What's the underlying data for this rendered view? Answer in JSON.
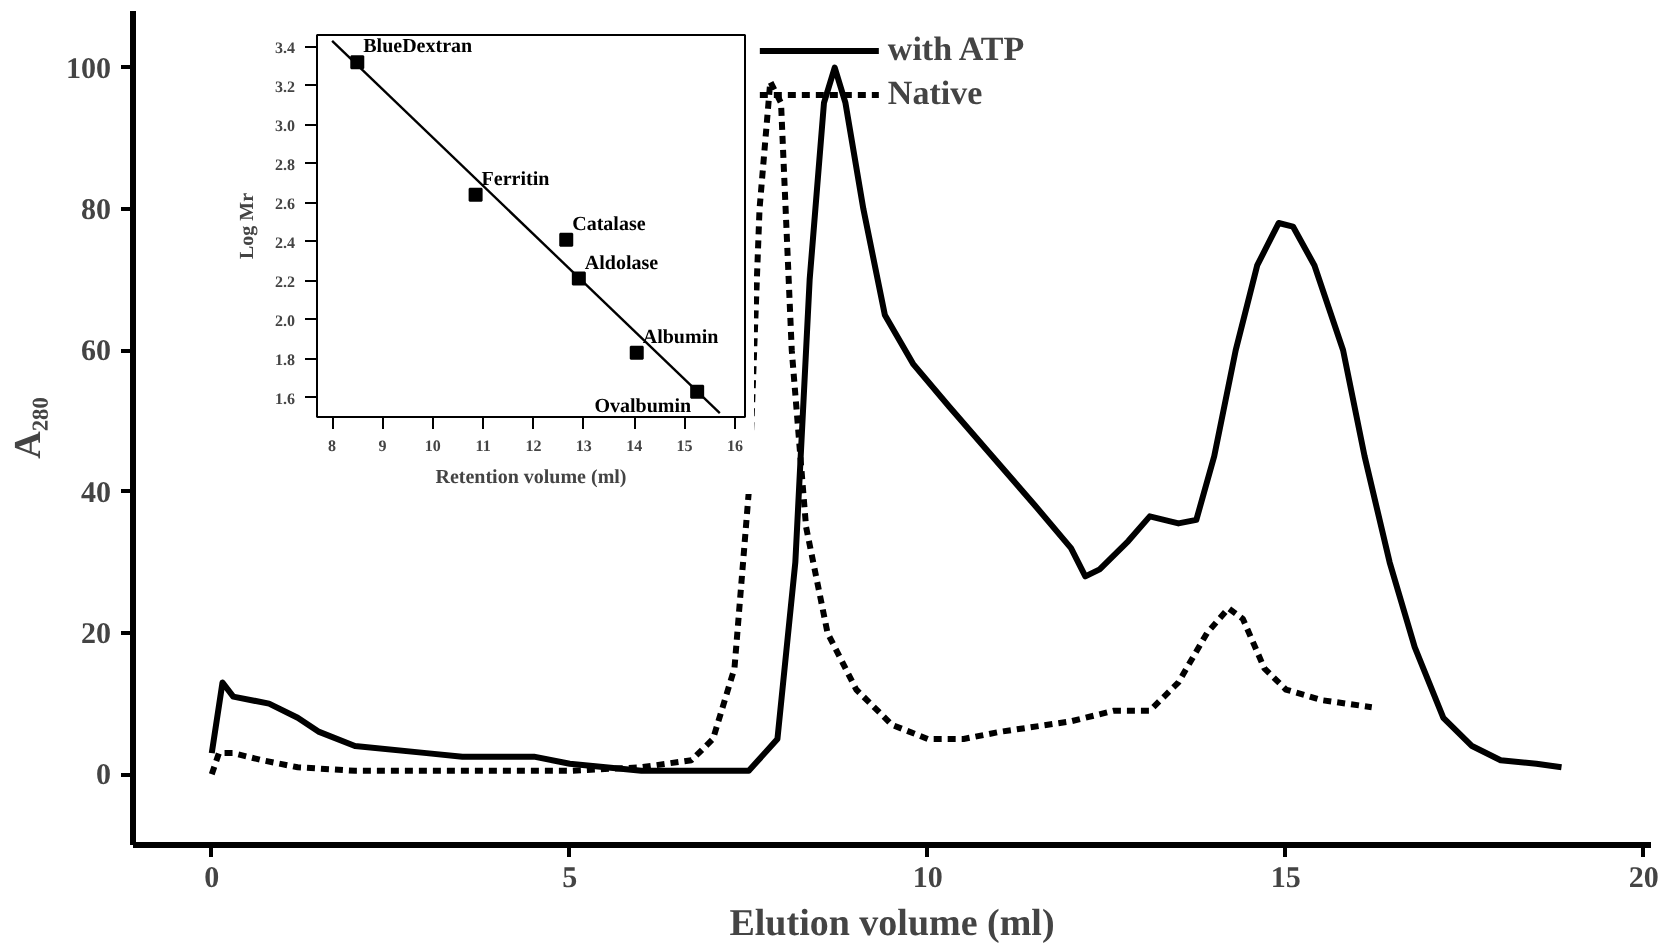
{
  "chart_data": [
    {
      "type": "line",
      "xlabel": "Elution volume (ml)",
      "ylabel": "A₂₈₀",
      "xlim": [
        -1.1,
        20.1
      ],
      "ylim": [
        -10,
        108
      ],
      "xticks": [
        0,
        5,
        10,
        15,
        20
      ],
      "yticks": [
        0,
        20,
        40,
        60,
        80,
        100
      ],
      "grid": false,
      "legend": "top",
      "marker": "none",
      "series": [
        {
          "name": "with ATP",
          "color": "#000000",
          "line_style": "solid",
          "x": [
            0,
            0.15,
            0.3,
            0.8,
            1.2,
            1.5,
            2,
            3,
            3.5,
            4.5,
            5,
            5.5,
            6,
            7,
            7.5,
            7.9,
            8.15,
            8.35,
            8.55,
            8.7,
            8.85,
            9.1,
            9.4,
            9.8,
            10.3,
            10.9,
            11.5,
            12,
            12.2,
            12.4,
            12.8,
            13.1,
            13.5,
            13.75,
            14,
            14.3,
            14.6,
            14.9,
            15.1,
            15.4,
            15.8,
            16.1,
            16.45,
            16.8,
            17.2,
            17.6,
            18,
            18.5,
            18.85
          ],
          "values": [
            3,
            13,
            11,
            10,
            8,
            6,
            4,
            3,
            2.5,
            2.5,
            1.5,
            1,
            0.5,
            0.5,
            0.5,
            5,
            30,
            70,
            95,
            100,
            95,
            80,
            65,
            58,
            52,
            45,
            38,
            32,
            28,
            29,
            33,
            36.5,
            35.5,
            36,
            45,
            60,
            72,
            78,
            77.5,
            72,
            60,
            45,
            30,
            18,
            8,
            4,
            2,
            1.5,
            1
          ]
        },
        {
          "name": "Native",
          "color": "#000000",
          "line_style": "dashed",
          "x": [
            0,
            0.1,
            0.3,
            0.7,
            1.2,
            2,
            4,
            5,
            6,
            6.7,
            7,
            7.3,
            7.5,
            7.65,
            7.8,
            7.95,
            8.1,
            8.3,
            8.6,
            9,
            9.5,
            10,
            10.5,
            11,
            12,
            12.6,
            13.1,
            13.5,
            13.9,
            14.2,
            14.4,
            14.7,
            15,
            15.5,
            16.2
          ],
          "values": [
            0,
            3,
            3,
            2,
            1,
            0.5,
            0.5,
            0.5,
            1,
            2,
            5,
            15,
            40,
            80,
            98,
            95,
            60,
            35,
            20,
            12,
            7,
            5,
            5,
            6,
            7.5,
            9,
            9,
            13,
            20,
            23.5,
            22,
            15,
            12,
            10.5,
            9.5
          ]
        }
      ]
    },
    {
      "type": "scatter",
      "xlabel": "Retention volume (ml)",
      "ylabel": "Log Mr",
      "xlim": [
        7.7,
        16.2
      ],
      "ylim": [
        1.5,
        3.46
      ],
      "xticks": [
        8,
        9,
        10,
        11,
        12,
        13,
        14,
        15,
        16
      ],
      "yticks": [
        1.6,
        1.8,
        {
          "value": 2,
          "label": "2.0"
        },
        2.2,
        2.4,
        2.6,
        2.8,
        {
          "value": 3,
          "label": "3.0"
        },
        3.2,
        3.4
      ],
      "grid": false,
      "legend": false,
      "marker": "square",
      "series": [
        {
          "color": "#000000",
          "x": [
            8.5,
            10.85,
            12.65,
            12.9,
            14.05,
            15.25
          ],
          "values": [
            3.32,
            2.64,
            2.41,
            2.21,
            1.83,
            1.63
          ]
        },
        {
          "type": "line",
          "color": "#000000",
          "line_style": "solid",
          "marker": "none",
          "x": [
            8,
            15.7
          ],
          "values": [
            3.43,
            1.52
          ]
        }
      ],
      "annotations": [
        {
          "text": "BlueDextran",
          "x": 8.5,
          "y": 3.32
        },
        {
          "text": "Ferritin",
          "x": 10.85,
          "y": 2.64
        },
        {
          "text": "Catalase",
          "x": 12.65,
          "y": 2.41
        },
        {
          "text": "Aldolase",
          "x": 12.9,
          "y": 2.21
        },
        {
          "text": "Albumin",
          "x": 14.05,
          "y": 1.83
        },
        {
          "text": "Ovalbumin",
          "x": 15.25,
          "y": 1.63
        }
      ]
    }
  ]
}
